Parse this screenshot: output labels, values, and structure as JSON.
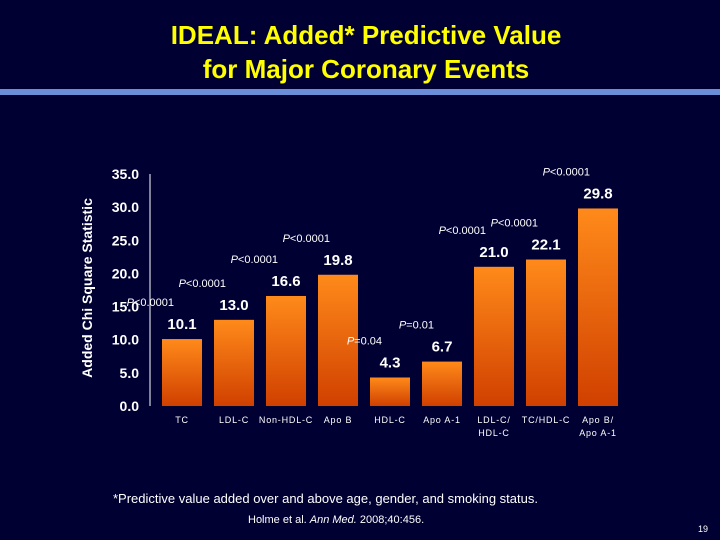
{
  "slide": {
    "title_line1": "IDEAL: Added* Predictive Value",
    "title_line2": "for Major Coronary Events",
    "footnote": "*Predictive value added over and above age, gender, and smoking status.",
    "citation_authors": "Holme et al. ",
    "citation_journal": "Ann Med.",
    "citation_ref": " 2008;40:456.",
    "page_number": "19"
  },
  "colors": {
    "background": "#000033",
    "title": "#ffff00",
    "bar_top": "#ff8a1a",
    "bar_bottom": "#d04000",
    "accent_rule": "#6a8fd8"
  },
  "chart_data": {
    "type": "bar",
    "ylabel": "Added Chi Square Statistic",
    "xlabel": "",
    "ylim": [
      0,
      35
    ],
    "yticks": [
      "0.0",
      "5.0",
      "10.0",
      "15.0",
      "20.0",
      "25.0",
      "30.0",
      "35.0"
    ],
    "categories": [
      [
        "TC"
      ],
      [
        "LDL-C"
      ],
      [
        "Non-HDL-C"
      ],
      [
        "Apo B"
      ],
      [
        "HDL-C"
      ],
      [
        "Apo A-1"
      ],
      [
        "LDL-C/",
        "HDL-C"
      ],
      [
        "TC/HDL-C"
      ],
      [
        "Apo B/",
        "Apo A-1"
      ]
    ],
    "values": [
      10.1,
      13.0,
      16.6,
      19.8,
      4.3,
      6.7,
      21.0,
      22.1,
      29.8
    ],
    "value_labels": [
      "10.1",
      "13.0",
      "16.6",
      "19.8",
      "4.3",
      "6.7",
      "21.0",
      "22.1",
      "29.8"
    ],
    "p_labels": [
      "<0.0001",
      "<0.0001",
      "<0.0001",
      "<0.0001",
      "=0.04",
      "=0.01",
      "<0.0001",
      "<0.0001",
      "<0.0001"
    ],
    "p_symbol": "P",
    "grid": false,
    "legend": "none"
  }
}
